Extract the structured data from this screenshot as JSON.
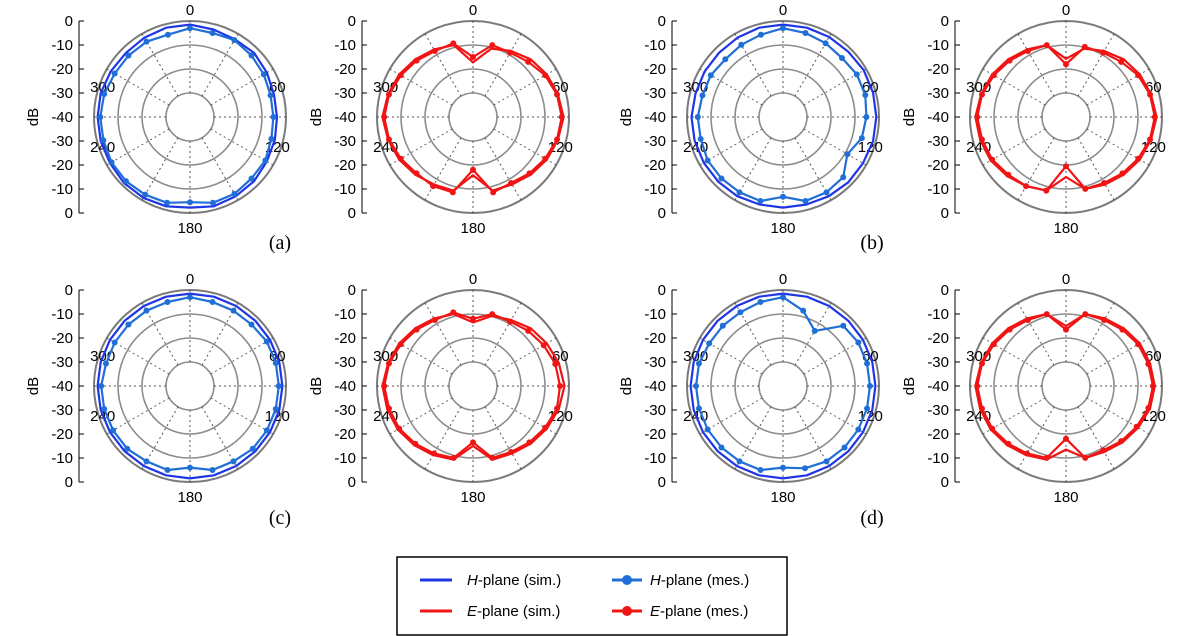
{
  "panels": [
    {
      "id": "a",
      "label": "(a)"
    },
    {
      "id": "b",
      "label": "(b)"
    },
    {
      "id": "c",
      "label": "(c)"
    },
    {
      "id": "d",
      "label": "(d)"
    }
  ],
  "legend": {
    "entries": [
      {
        "key": "h_sim",
        "italic": "H",
        "rest": "-plane (sim.)",
        "color": "#1f35e6",
        "marker": false
      },
      {
        "key": "h_mes",
        "italic": "H",
        "rest": "-plane (mes.)",
        "color": "#1f6fd6",
        "marker": true
      },
      {
        "key": "e_sim",
        "italic": "E",
        "rest": "-plane (sim.)",
        "color": "#f01414",
        "marker": false
      },
      {
        "key": "e_mes",
        "italic": "E",
        "rest": "-plane (mes.)",
        "color": "#f01414",
        "marker": true
      }
    ]
  },
  "colors": {
    "h_plane": "#1f35e6",
    "e_plane": "#f01414",
    "grid": "#808080"
  },
  "chart_data": [
    {
      "type": "polar-line",
      "panel": "a",
      "plane": "H",
      "ylabel": "dB",
      "r_ticks": [
        "0",
        "-10",
        "-20",
        "-30",
        "-40",
        "-30",
        "-20",
        "-10",
        "0"
      ],
      "r_range": [
        -40,
        0
      ],
      "angle_ticks": [
        0,
        60,
        120,
        180,
        240,
        300
      ],
      "angle_deg": [
        0,
        15,
        30,
        45,
        60,
        75,
        90,
        105,
        120,
        135,
        150,
        165,
        180,
        195,
        210,
        225,
        240,
        255,
        270,
        285,
        300,
        315,
        330,
        345
      ],
      "series": [
        {
          "key": "h_sim",
          "values": [
            -2,
            -3,
            -3.5,
            -3,
            -4,
            -5,
            -5,
            -4.5,
            -4,
            -3,
            -2.5,
            -2,
            -3,
            -2,
            -1.5,
            -1.5,
            -2,
            -2,
            -2,
            -2,
            -2.5,
            -3,
            -2.5,
            -2
          ]
        },
        {
          "key": "h_mes",
          "values": [
            -4,
            -5,
            -4,
            -5,
            -6,
            -7,
            -7,
            -6.5,
            -5,
            -5,
            -4,
            -4,
            -6,
            -4,
            -3.5,
            -3,
            -3,
            -3.5,
            -3.5,
            -4,
            -5,
            -5,
            -5,
            -6
          ]
        }
      ]
    },
    {
      "type": "polar-line",
      "panel": "a",
      "plane": "E",
      "ylabel": "dB",
      "r_ticks": [
        "0",
        "-10",
        "-20",
        "-30",
        "-40",
        "-30",
        "-20",
        "-10",
        "0"
      ],
      "r_range": [
        -40,
        0
      ],
      "angle_ticks": [
        0,
        60,
        120,
        180,
        240,
        300
      ],
      "angle_deg": [
        0,
        15,
        30,
        45,
        60,
        75,
        90,
        105,
        120,
        135,
        150,
        165,
        180,
        195,
        210,
        225,
        240,
        255,
        270,
        285,
        300,
        315,
        330,
        345
      ],
      "series": [
        {
          "key": "e_sim",
          "values": [
            -23,
            -14,
            -11,
            -8,
            -6,
            -4.5,
            -3,
            -4.5,
            -6,
            -8,
            -10,
            -11,
            -21,
            -11,
            -10,
            -8,
            -6,
            -4.5,
            -3,
            -4.5,
            -6,
            -8,
            -10,
            -12
          ]
        },
        {
          "key": "e_mes",
          "values": [
            -20,
            -12,
            -12,
            -10,
            -7,
            -5,
            -4,
            -5,
            -7,
            -9,
            -11,
            -10,
            -24,
            -10,
            -9,
            -9,
            -7,
            -5,
            -4,
            -5,
            -7,
            -9,
            -11,
            -11
          ]
        }
      ]
    },
    {
      "type": "polar-line",
      "panel": "b",
      "plane": "H",
      "ylabel": "dB",
      "r_ticks": [
        "0",
        "-10",
        "-20",
        "-30",
        "-40",
        "-30",
        "-20",
        "-10",
        "0"
      ],
      "r_range": [
        -40,
        0
      ],
      "angle_ticks": [
        0,
        60,
        120,
        180,
        240,
        300
      ],
      "angle_deg": [
        0,
        15,
        30,
        45,
        60,
        75,
        90,
        105,
        120,
        135,
        150,
        165,
        180,
        195,
        210,
        225,
        240,
        255,
        270,
        285,
        300,
        315,
        330,
        345
      ],
      "series": [
        {
          "key": "h_sim",
          "values": [
            -2,
            -2,
            -2,
            -2,
            -1.5,
            -1.5,
            -1.5,
            -1.5,
            -2,
            -2,
            -2.5,
            -3,
            -3,
            -3,
            -2.5,
            -2.5,
            -2.5,
            -2.5,
            -2.5,
            -3,
            -3,
            -3,
            -2.5,
            -2
          ]
        },
        {
          "key": "h_mes",
          "values": [
            -4,
            -5,
            -6,
            -7,
            -6,
            -6,
            -7,
            -8,
            -12,
            -6,
            -5,
            -5,
            -9,
            -5,
            -5,
            -5,
            -5,
            -6,
            -6,
            -7,
            -7,
            -8,
            -7,
            -6
          ]
        }
      ]
    },
    {
      "type": "polar-line",
      "panel": "b",
      "plane": "E",
      "ylabel": "dB",
      "r_ticks": [
        "0",
        "-10",
        "-20",
        "-30",
        "-40",
        "-30",
        "-20",
        "-10",
        "0"
      ],
      "r_range": [
        -40,
        0
      ],
      "angle_ticks": [
        0,
        60,
        120,
        180,
        240,
        300
      ],
      "angle_deg": [
        0,
        15,
        30,
        45,
        60,
        75,
        90,
        105,
        120,
        135,
        150,
        165,
        180,
        195,
        210,
        225,
        240,
        255,
        270,
        285,
        300,
        315,
        330,
        345
      ],
      "series": [
        {
          "key": "e_sim",
          "values": [
            -21,
            -14,
            -11,
            -8,
            -6,
            -4.5,
            -3,
            -4.5,
            -6,
            -8,
            -10,
            -12,
            -20,
            -11,
            -9,
            -7,
            -5,
            -4,
            -3,
            -4.5,
            -6,
            -8,
            -10,
            -12
          ]
        },
        {
          "key": "e_mes",
          "values": [
            -24,
            -13,
            -12,
            -10,
            -7,
            -5,
            -4,
            -5,
            -7,
            -9,
            -11,
            -12,
            -26,
            -11,
            -9,
            -8,
            -6,
            -5,
            -4,
            -5,
            -7,
            -9,
            -11,
            -12
          ]
        }
      ]
    },
    {
      "type": "polar-line",
      "panel": "c",
      "plane": "H",
      "ylabel": "dB",
      "r_ticks": [
        "0",
        "-10",
        "-20",
        "-30",
        "-40",
        "-30",
        "-20",
        "-10",
        "0"
      ],
      "r_range": [
        -40,
        0
      ],
      "angle_ticks": [
        0,
        60,
        120,
        180,
        240,
        300
      ],
      "angle_deg": [
        0,
        15,
        30,
        45,
        60,
        75,
        90,
        105,
        120,
        135,
        150,
        165,
        180,
        195,
        210,
        225,
        240,
        255,
        270,
        285,
        300,
        315,
        330,
        345
      ],
      "series": [
        {
          "key": "h_sim",
          "values": [
            -2,
            -2,
            -2,
            -2,
            -2,
            -2,
            -2,
            -2,
            -2,
            -2,
            -2,
            -2,
            -2,
            -2,
            -2,
            -2,
            -2,
            -2,
            -2,
            -2,
            -2,
            -2,
            -2,
            -2
          ]
        },
        {
          "key": "h_mes",
          "values": [
            -4,
            -5,
            -5,
            -5,
            -4,
            -4,
            -4,
            -4,
            -4,
            -4,
            -5,
            -5,
            -8,
            -5,
            -5,
            -4,
            -4,
            -4,
            -4,
            -5,
            -5,
            -5,
            -5,
            -5
          ]
        }
      ]
    },
    {
      "type": "polar-line",
      "panel": "c",
      "plane": "E",
      "ylabel": "dB",
      "r_ticks": [
        "0",
        "-10",
        "-20",
        "-30",
        "-40",
        "-30",
        "-20",
        "-10",
        "0"
      ],
      "r_range": [
        -40,
        0
      ],
      "angle_ticks": [
        0,
        60,
        120,
        180,
        240,
        300
      ],
      "angle_deg": [
        0,
        15,
        30,
        45,
        60,
        75,
        90,
        105,
        120,
        135,
        150,
        165,
        180,
        195,
        210,
        225,
        240,
        255,
        270,
        285,
        300,
        315,
        330,
        345
      ],
      "series": [
        {
          "key": "e_sim",
          "values": [
            -18,
            -13,
            -11,
            -8,
            -6,
            -4,
            -2.5,
            -4,
            -6,
            -8,
            -10,
            -11,
            -20,
            -11,
            -9,
            -7,
            -5,
            -4,
            -3,
            -4.5,
            -6,
            -8,
            -10,
            -12
          ]
        },
        {
          "key": "e_mes",
          "values": [
            -16,
            -12,
            -12,
            -10,
            -8,
            -6,
            -5,
            -5,
            -7,
            -9,
            -11,
            -12,
            -22,
            -12,
            -10,
            -8,
            -6,
            -5,
            -4,
            -5,
            -7,
            -9,
            -11,
            -11
          ]
        }
      ]
    },
    {
      "type": "polar-line",
      "panel": "d",
      "plane": "H",
      "ylabel": "dB",
      "r_ticks": [
        "0",
        "-10",
        "-20",
        "-30",
        "-40",
        "-30",
        "-20",
        "-10",
        "0"
      ],
      "r_range": [
        -40,
        0
      ],
      "angle_ticks": [
        0,
        60,
        120,
        180,
        240,
        300
      ],
      "angle_deg": [
        0,
        15,
        30,
        45,
        60,
        75,
        90,
        105,
        120,
        135,
        150,
        165,
        180,
        195,
        210,
        225,
        240,
        255,
        270,
        285,
        300,
        315,
        330,
        345
      ],
      "series": [
        {
          "key": "h_sim",
          "values": [
            -2,
            -2,
            -2,
            -2,
            -2,
            -2,
            -2,
            -2,
            -2,
            -2,
            -2,
            -2,
            -2,
            -2,
            -2,
            -2,
            -2,
            -2,
            -2,
            -2,
            -2,
            -2,
            -2,
            -2
          ]
        },
        {
          "key": "h_mes",
          "values": [
            -4,
            -10,
            -18,
            -6,
            -5,
            -5,
            -5,
            -5,
            -5,
            -5,
            -5,
            -6,
            -8,
            -5,
            -5,
            -5,
            -5,
            -5,
            -5,
            -5,
            -6,
            -6,
            -6,
            -5
          ]
        }
      ]
    },
    {
      "type": "polar-line",
      "panel": "d",
      "plane": "E",
      "ylabel": "dB",
      "r_ticks": [
        "0",
        "-10",
        "-20",
        "-30",
        "-40",
        "-30",
        "-20",
        "-10",
        "0"
      ],
      "r_range": [
        -40,
        0
      ],
      "angle_ticks": [
        0,
        60,
        120,
        180,
        240,
        300
      ],
      "angle_deg": [
        0,
        15,
        30,
        45,
        60,
        75,
        90,
        105,
        120,
        135,
        150,
        165,
        180,
        195,
        210,
        225,
        240,
        255,
        270,
        285,
        300,
        315,
        330,
        345
      ],
      "series": [
        {
          "key": "e_sim",
          "values": [
            -20,
            -12,
            -10,
            -8,
            -6,
            -5,
            -4,
            -5,
            -7,
            -9,
            -11,
            -12,
            -18,
            -11,
            -9,
            -7,
            -5,
            -4,
            -3,
            -4.5,
            -6,
            -8,
            -10,
            -12
          ]
        },
        {
          "key": "e_mes",
          "values": [
            -22,
            -12,
            -11,
            -9,
            -7,
            -6,
            -5,
            -6,
            -8,
            -10,
            -12,
            -12,
            -24,
            -12,
            -10,
            -8,
            -6,
            -5,
            -4,
            -5,
            -7,
            -9,
            -11,
            -12
          ]
        }
      ]
    }
  ]
}
